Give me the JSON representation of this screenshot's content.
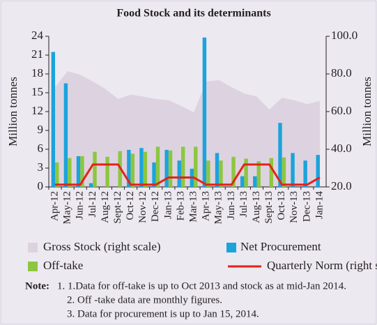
{
  "chart_data": {
    "type": "combo",
    "title": "Food Stock and its determinants",
    "y_label": "Million tonnes",
    "y2_label": "Million tonnes",
    "categories": [
      "Apr-12",
      "May-12",
      "Jun-12",
      "Jul-12",
      "Aug-12",
      "Sept-12",
      "Oct-12",
      "Nov-12",
      "Dec-12",
      "Jan-13",
      "Feb-13",
      "Mar-13",
      "Apr-13",
      "May-13",
      "Jun-13",
      "Jul-13",
      "Aug-13",
      "Sept-13",
      "Oct-13",
      "Nov-13",
      "Dec-13",
      "Jan-14"
    ],
    "ylim": [
      0,
      24
    ],
    "yticks": [
      0,
      3,
      6,
      9,
      12,
      15,
      18,
      21,
      24
    ],
    "y2lim": [
      20,
      100
    ],
    "y2ticks": [
      {
        "value": 20,
        "label": "20.0"
      },
      {
        "value": 40,
        "label": "40.0"
      },
      {
        "value": 60,
        "label": "60.0"
      },
      {
        "value": 80,
        "label": "80.0"
      },
      {
        "value": 100,
        "label": "100.0"
      }
    ],
    "series": [
      {
        "name": "Gross Stock (right scale)",
        "type": "area",
        "axis": "y2",
        "color": "#ddd3e0",
        "values": [
          73,
          81.5,
          79.6,
          76,
          72,
          66.7,
          69,
          68,
          66.7,
          66,
          63,
          59.6,
          76,
          76.7,
          73,
          69.6,
          68,
          61,
          67.4,
          66,
          64,
          65.6
        ]
      },
      {
        "name": "Net Procurement",
        "type": "bar",
        "color": "#1ba3dc",
        "values": [
          21.5,
          16.5,
          4.9,
          0.6,
          0,
          0,
          5.9,
          6.2,
          3.9,
          5.9,
          4.2,
          2.9,
          23.8,
          5.4,
          0,
          1.7,
          1.7,
          0,
          10.2,
          5.4,
          4.2,
          5.1
        ]
      },
      {
        "name": "Off-take",
        "type": "bar",
        "color": "#8dc63f",
        "values": [
          3.9,
          4.6,
          4.9,
          5.6,
          4.8,
          5.7,
          5.3,
          5.6,
          6.4,
          5.8,
          6.4,
          6.4,
          4.2,
          4.2,
          4.8,
          4.5,
          4.1,
          4.6,
          4.7,
          null,
          null,
          null
        ]
      },
      {
        "name": "Quarterly Norm (right scale)",
        "type": "line",
        "axis": "y2",
        "color": "#e2231a",
        "values": [
          21.2,
          21.2,
          21.2,
          31.9,
          31.9,
          31.9,
          21.2,
          21.2,
          21.2,
          25,
          25,
          25,
          21.2,
          21.2,
          21.2,
          31.9,
          31.9,
          31.9,
          21.2,
          21.2,
          21.2,
          25
        ]
      }
    ]
  },
  "notes": {
    "label": "Note:",
    "items": [
      "1. 1.Data for off-take is up to Oct 2013 and stock as at mid-Jan  2014.",
      "2. Off -take data are monthly figures.",
      "3. Data for procurement is up to Jan 15, 2014."
    ]
  }
}
